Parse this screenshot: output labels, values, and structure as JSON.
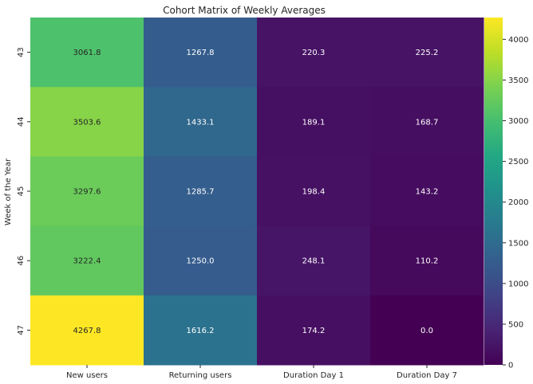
{
  "chart_data": {
    "type": "heatmap",
    "title": "Cohort Matrix of Weekly Averages",
    "xlabel": "",
    "ylabel": "Week of the Year",
    "columns": [
      "New users",
      "Returning users",
      "Duration Day 1",
      "Duration Day 7"
    ],
    "rows": [
      "43",
      "44",
      "45",
      "46",
      "47"
    ],
    "values": [
      [
        3061.8,
        1267.8,
        220.3,
        225.2
      ],
      [
        3503.6,
        1433.1,
        189.1,
        168.7
      ],
      [
        3297.6,
        1285.7,
        198.4,
        143.2
      ],
      [
        3222.4,
        1250.0,
        248.1,
        110.2
      ],
      [
        4267.8,
        1616.2,
        174.2,
        0.0
      ]
    ],
    "value_labels": [
      [
        "3061.8",
        "1267.8",
        "220.3",
        "225.2"
      ],
      [
        "3503.6",
        "1433.1",
        "189.1",
        "168.7"
      ],
      [
        "3297.6",
        "1285.7",
        "198.4",
        "143.2"
      ],
      [
        "3222.4",
        "1250.0",
        "248.1",
        "110.2"
      ],
      [
        "4267.8",
        "1616.2",
        "174.2",
        "0.0"
      ]
    ],
    "colormap": "viridis",
    "vmin": 0,
    "vmax": 4267.8,
    "colorbar_ticks": [
      0,
      500,
      1000,
      1500,
      2000,
      2500,
      3000,
      3500,
      4000
    ]
  }
}
